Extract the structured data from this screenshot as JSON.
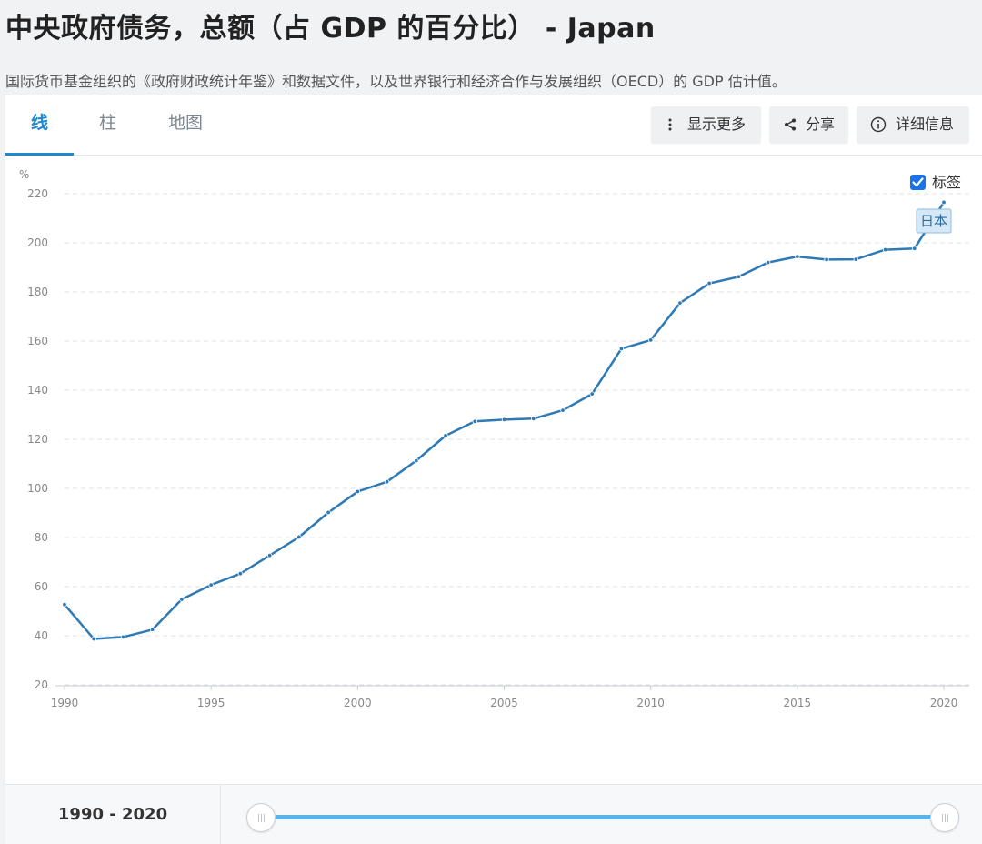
{
  "title": "中央政府债务，总额（占 GDP 的百分比） - Japan",
  "subtitle": "国际货币基金组织的《政府财政统计年鉴》和数据文件，以及世界银行和经济合作与发展组织（OECD）的 GDP 估计值。",
  "tabs": [
    "线",
    "柱",
    "地图"
  ],
  "toolbar": {
    "more": "显示更多",
    "share": "分享",
    "details": "详细信息"
  },
  "labels_checkbox": "标签",
  "range_label": "1990 - 2020",
  "colors": {
    "line": "#2f7ab4",
    "accent": "#1e8ad2",
    "track": "#5ab4ea"
  },
  "chart_data": {
    "type": "line",
    "ylabel": "%",
    "ylim": [
      20,
      220
    ],
    "yticks": [
      20,
      40,
      60,
      80,
      100,
      120,
      140,
      160,
      180,
      200,
      220
    ],
    "xlim": [
      1990,
      2020
    ],
    "xticks": [
      1990,
      1995,
      2000,
      2005,
      2010,
      2015,
      2020
    ],
    "grid": true,
    "series": [
      {
        "name": "日本",
        "x": [
          1990,
          1991,
          1992,
          1993,
          1994,
          1995,
          1996,
          1997,
          1998,
          1999,
          2000,
          2001,
          2002,
          2003,
          2004,
          2005,
          2006,
          2007,
          2008,
          2009,
          2010,
          2011,
          2012,
          2013,
          2014,
          2015,
          2016,
          2017,
          2018,
          2019,
          2020
        ],
        "y": [
          52.7,
          38.7,
          39.5,
          42.5,
          54.8,
          60.7,
          65.3,
          72.7,
          80.2,
          90.2,
          98.7,
          102.7,
          111.3,
          121.5,
          127.3,
          128.0,
          128.4,
          131.8,
          138.5,
          156.9,
          160.4,
          175.5,
          183.5,
          186.2,
          192.0,
          194.4,
          193.2,
          193.3,
          197.2,
          197.7,
          216.5
        ]
      }
    ]
  }
}
